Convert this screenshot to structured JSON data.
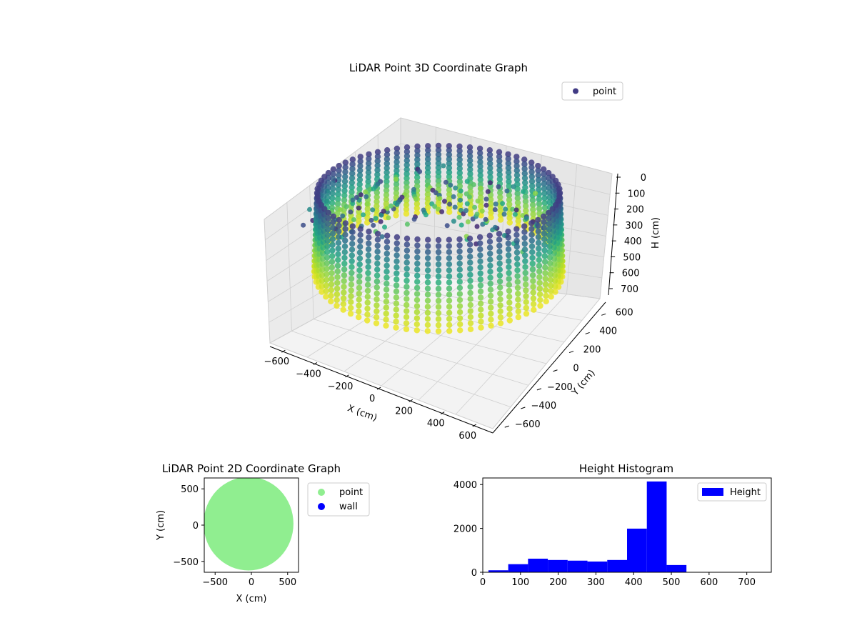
{
  "chart_data": [
    {
      "type": "scatter",
      "projection": "3d",
      "title": "LiDAR Point 3D Coordinate Graph",
      "xlabel": "X (cm)",
      "ylabel": "Y (cm)",
      "zlabel": "H (cm)",
      "xlim": [
        -650,
        650
      ],
      "ylim": [
        -650,
        650
      ],
      "zlim": [
        750,
        0
      ],
      "x_ticks": [
        "−600",
        "−400",
        "−200",
        "0",
        "200",
        "400",
        "600"
      ],
      "y_ticks": [
        "−600",
        "−400",
        "−200",
        "0",
        "200",
        "400",
        "600"
      ],
      "z_ticks": [
        "0",
        "100",
        "200",
        "300",
        "400",
        "500",
        "600",
        "700"
      ],
      "legend": {
        "entries": [
          "point"
        ],
        "placement": "upper-right"
      },
      "colormap": "viridis",
      "series": [
        {
          "name": "point",
          "description_values": {
            "wall_radius": 600,
            "wall_height_range": [
              0,
              750
            ]
          }
        }
      ],
      "grid": true
    },
    {
      "type": "scatter",
      "title": "LiDAR Point 2D Coordinate Graph",
      "xlabel": "X (cm)",
      "ylabel": "Y (cm)",
      "xlim": [
        -650,
        650
      ],
      "ylim": [
        -650,
        650
      ],
      "x_ticks": [
        "−500",
        "0",
        "500"
      ],
      "y_ticks": [
        "−500",
        "0",
        "500"
      ],
      "legend": {
        "entries": [
          "point",
          "wall"
        ],
        "placement": "outside-right"
      },
      "series": [
        {
          "name": "point",
          "color": "#90ee90",
          "shape": "disc",
          "radius": 620
        },
        {
          "name": "wall",
          "color": "#0000ff"
        }
      ],
      "grid": false
    },
    {
      "type": "bar",
      "subtype": "histogram",
      "title": "Height Histogram",
      "xlabel": "",
      "ylabel": "",
      "xlim": [
        0,
        765
      ],
      "ylim": [
        0,
        4300
      ],
      "x_ticks": [
        "0",
        "100",
        "200",
        "300",
        "400",
        "500",
        "600",
        "700"
      ],
      "y_ticks": [
        "0",
        "2000",
        "4000"
      ],
      "legend": {
        "entries": [
          "Height"
        ],
        "placement": "upper-right"
      },
      "bin_edges": [
        15,
        67.5,
        120,
        172.5,
        225,
        277.5,
        330,
        382.5,
        435,
        487.5,
        540,
        592.5,
        645,
        697.5,
        750
      ],
      "series": [
        {
          "name": "Height",
          "color": "#0000ff",
          "values": [
            90,
            370,
            620,
            560,
            530,
            490,
            560,
            1990,
            4140,
            330,
            0,
            0,
            0,
            0
          ]
        }
      ],
      "grid": false
    }
  ]
}
